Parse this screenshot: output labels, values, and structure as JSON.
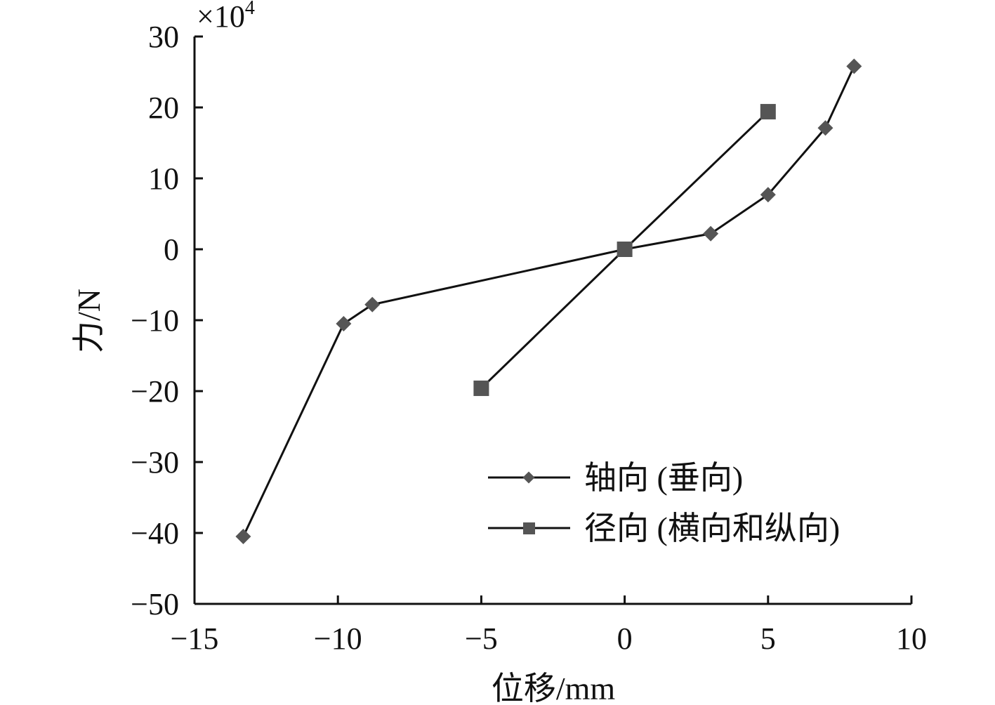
{
  "chart_data": {
    "type": "line",
    "xlabel": "位移/mm",
    "ylabel": "力/N",
    "y_multiplier": "×10",
    "y_multiplier_exp": "4",
    "xlim": [
      -15,
      10
    ],
    "ylim": [
      -50,
      30
    ],
    "xticks": [
      -15,
      -10,
      -5,
      0,
      5,
      10
    ],
    "yticks": [
      -50,
      -40,
      -30,
      -20,
      -10,
      0,
      10,
      20,
      30
    ],
    "xtick_labels": [
      "−15",
      "−10",
      "−5",
      "0",
      "5",
      "10"
    ],
    "ytick_labels": [
      "−50",
      "−40",
      "−30",
      "−20",
      "−10",
      "0",
      "10",
      "20",
      "30"
    ],
    "grid": false,
    "legend_position": "bottom-right",
    "series": [
      {
        "name": "轴向 (垂向)",
        "marker": "diamond",
        "color": "#555555",
        "x": [
          -13.3,
          -9.8,
          -8.8,
          0,
          3,
          5,
          7,
          8
        ],
        "y": [
          -40.5,
          -10.5,
          -7.8,
          0,
          2.2,
          7.7,
          17.1,
          25.8
        ]
      },
      {
        "name": "径向 (横向和纵向)",
        "marker": "square",
        "color": "#555555",
        "x": [
          -5,
          0,
          5
        ],
        "y": [
          -19.6,
          0,
          19.4
        ]
      }
    ]
  }
}
